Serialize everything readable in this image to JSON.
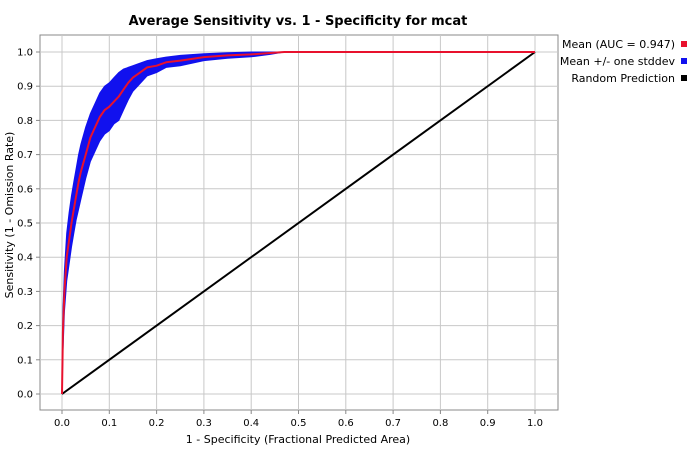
{
  "chart_data": {
    "type": "line",
    "title": "Average Sensitivity vs. 1 - Specificity for mcat",
    "xlabel": "1 - Specificity (Fractional Predicted Area)",
    "ylabel": "Sensitivity (1 - Omission Rate)",
    "xlim": [
      0,
      1
    ],
    "ylim": [
      0,
      1
    ],
    "xticks": [
      "0.0",
      "0.1",
      "0.2",
      "0.3",
      "0.4",
      "0.5",
      "0.6",
      "0.7",
      "0.8",
      "0.9",
      "1.0"
    ],
    "yticks": [
      "0.0",
      "0.1",
      "0.2",
      "0.3",
      "0.4",
      "0.5",
      "0.6",
      "0.7",
      "0.8",
      "0.9",
      "1.0"
    ],
    "grid": true,
    "legend_position": "right",
    "series": [
      {
        "name": "Mean (AUC = 0.947)",
        "color": "#e8112d",
        "x": [
          0,
          0.002,
          0.005,
          0.01,
          0.015,
          0.02,
          0.025,
          0.03,
          0.035,
          0.04,
          0.05,
          0.06,
          0.07,
          0.08,
          0.09,
          0.1,
          0.11,
          0.12,
          0.13,
          0.14,
          0.15,
          0.16,
          0.18,
          0.2,
          0.22,
          0.25,
          0.3,
          0.35,
          0.4,
          0.44,
          0.47,
          0.5,
          0.6,
          0.8,
          1.0
        ],
        "y": [
          0,
          0.18,
          0.3,
          0.4,
          0.45,
          0.5,
          0.54,
          0.58,
          0.62,
          0.65,
          0.7,
          0.75,
          0.78,
          0.81,
          0.83,
          0.84,
          0.855,
          0.87,
          0.89,
          0.91,
          0.925,
          0.935,
          0.955,
          0.96,
          0.97,
          0.975,
          0.985,
          0.99,
          0.993,
          0.997,
          1.0,
          1.0,
          1.0,
          1.0,
          1.0
        ]
      },
      {
        "name": "Mean +/- one stddev",
        "color": "#1111ee",
        "x": [
          0,
          0.002,
          0.005,
          0.01,
          0.015,
          0.02,
          0.025,
          0.03,
          0.035,
          0.04,
          0.05,
          0.06,
          0.07,
          0.08,
          0.09,
          0.1,
          0.11,
          0.12,
          0.13,
          0.14,
          0.15,
          0.16,
          0.18,
          0.2,
          0.22,
          0.25,
          0.3,
          0.35,
          0.4,
          0.44,
          0.47,
          0.5,
          0.6,
          0.8,
          1.0
        ],
        "upper": [
          0,
          0.24,
          0.36,
          0.47,
          0.53,
          0.58,
          0.62,
          0.66,
          0.7,
          0.73,
          0.78,
          0.82,
          0.85,
          0.88,
          0.9,
          0.91,
          0.925,
          0.94,
          0.95,
          0.955,
          0.96,
          0.965,
          0.975,
          0.98,
          0.985,
          0.99,
          0.995,
          0.998,
          1.0,
          1.0,
          1.0,
          1.0,
          1.0,
          1.0,
          1.0
        ],
        "lower": [
          0,
          0.12,
          0.24,
          0.33,
          0.38,
          0.43,
          0.47,
          0.51,
          0.54,
          0.57,
          0.63,
          0.68,
          0.71,
          0.74,
          0.76,
          0.77,
          0.79,
          0.8,
          0.83,
          0.86,
          0.885,
          0.9,
          0.93,
          0.94,
          0.955,
          0.96,
          0.975,
          0.982,
          0.986,
          0.993,
          1.0,
          1.0,
          1.0,
          1.0,
          1.0
        ]
      },
      {
        "name": "Random Prediction",
        "color": "#000000",
        "x": [
          0,
          1
        ],
        "y": [
          0,
          1
        ]
      }
    ]
  }
}
